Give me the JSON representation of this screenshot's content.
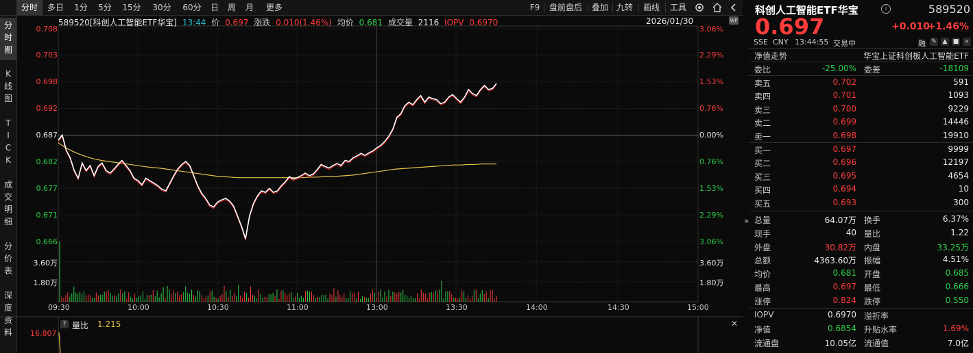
{
  "toolbar": {
    "tabs": [
      "分时",
      "多日",
      "1分",
      "5分",
      "15分",
      "30分",
      "60分",
      "日",
      "周",
      "月",
      "更多"
    ],
    "right_tools": [
      "F9",
      "盘前盘后",
      "叠加",
      "九转",
      "画线",
      "工具"
    ]
  },
  "sidebar": {
    "items": [
      "分时图",
      "K线图",
      "TICK",
      "成交明细",
      "分价表",
      "深度资料"
    ]
  },
  "info": {
    "code_name": "589520[科创人工智能ETF华宝]",
    "time": "13:44",
    "price_label": "价",
    "price": "0.697",
    "change_label": "涨跌",
    "change": "0.010(1.46%)",
    "avg_label": "均价",
    "avg": "0.681",
    "volume_label": "成交量",
    "volume": "2116",
    "iopv_label": "IOPV",
    "iopv": "0.6970",
    "date": "2026/01/30"
  },
  "lower_info": {
    "label": "量比",
    "value": "1.215",
    "axis_top": "16.807"
  },
  "chart_data": {
    "type": "line",
    "price_axis_left": [
      "0.708",
      "0.703",
      "0.698",
      "0.692",
      "0.687",
      "0.682",
      "0.677",
      "0.671",
      "0.666"
    ],
    "percent_axis_right": [
      "3.06%",
      "2.29%",
      "1.53%",
      "0.76%",
      "0.00%",
      "0.76%",
      "1.53%",
      "2.29%",
      "3.06%"
    ],
    "volume_axis": [
      "3.60万",
      "1.80万"
    ],
    "x_ticks": [
      "09:30",
      "10:00",
      "10:30",
      "11:00",
      "13:00",
      "13:30",
      "14:00",
      "14:30",
      "15:00"
    ],
    "ylim": [
      0.666,
      0.708
    ],
    "prev_close": 0.687,
    "series": [
      {
        "name": "价",
        "values": [
          0.686,
          0.687,
          0.684,
          0.6825,
          0.68,
          0.6785,
          0.6815,
          0.68,
          0.681,
          0.679,
          0.6808,
          0.6815,
          0.68,
          0.6795,
          0.6803,
          0.6812,
          0.682,
          0.681,
          0.68,
          0.6785,
          0.678,
          0.6772,
          0.6785,
          0.678,
          0.6775,
          0.677,
          0.6763,
          0.676,
          0.6775,
          0.679,
          0.6803,
          0.6812,
          0.6818,
          0.681,
          0.679,
          0.677,
          0.6755,
          0.6745,
          0.6732,
          0.6728,
          0.6738,
          0.6742,
          0.6745,
          0.674,
          0.673,
          0.671,
          0.669,
          0.6665,
          0.671,
          0.6735,
          0.675,
          0.676,
          0.6757,
          0.6765,
          0.6757,
          0.676,
          0.677,
          0.6778,
          0.6788,
          0.6783,
          0.6786,
          0.679,
          0.6795,
          0.679,
          0.6793,
          0.6802,
          0.6812,
          0.6808,
          0.6805,
          0.681,
          0.6814,
          0.681,
          0.682,
          0.6818,
          0.6825,
          0.6829,
          0.6834,
          0.683,
          0.6835,
          0.6839,
          0.6845,
          0.685,
          0.6858,
          0.6868,
          0.6882,
          0.6905,
          0.6912,
          0.6928,
          0.6935,
          0.693,
          0.694,
          0.6948,
          0.6935,
          0.6945,
          0.6942,
          0.694,
          0.6932,
          0.6935,
          0.6945,
          0.695,
          0.6942,
          0.6935,
          0.6945,
          0.696,
          0.6952,
          0.6948,
          0.696,
          0.6968,
          0.696,
          0.6962,
          0.6972
        ],
        "color": "#ffffff"
      },
      {
        "name": "均价",
        "values": [
          0.6855,
          0.6845,
          0.6838,
          0.6832,
          0.6827,
          0.6823,
          0.682,
          0.6818,
          0.6816,
          0.6814,
          0.6812,
          0.681,
          0.6808,
          0.6806,
          0.6805,
          0.6803,
          0.6801,
          0.6799,
          0.6797,
          0.6795,
          0.6793,
          0.6791,
          0.6789,
          0.6788,
          0.6787,
          0.6786,
          0.6786,
          0.6786,
          0.6786,
          0.6786,
          0.6786,
          0.6786,
          0.6786,
          0.6786,
          0.6786,
          0.6787,
          0.6787,
          0.6788,
          0.6788,
          0.6789,
          0.679,
          0.6791,
          0.6793,
          0.6795,
          0.6797,
          0.6799,
          0.6801,
          0.6803,
          0.6804,
          0.6805,
          0.6806,
          0.6807,
          0.6808,
          0.6809,
          0.681,
          0.6811,
          0.6811,
          0.6812,
          0.6812,
          0.6813,
          0.6813,
          0.6813
        ],
        "color": "#e6c34a"
      }
    ]
  },
  "panel": {
    "title": "科创人工智能ETF华宝",
    "code": "589520",
    "price": "0.697",
    "change": "+0.010",
    "change_pct": "+1.46%",
    "exchange": "SSE",
    "currency": "CNY",
    "time": "13:44:55",
    "status": "交易中",
    "margin_badge": "融",
    "nav_label": "净值走势",
    "index_name": "华宝上证科创板人工智能ETF",
    "weibi_label": "委比",
    "weibi": "-25.00%",
    "weicha_label": "委差",
    "weicha": "-18109",
    "asks": [
      {
        "label": "卖五",
        "price": "0.702",
        "vol": "591"
      },
      {
        "label": "卖四",
        "price": "0.701",
        "vol": "1093"
      },
      {
        "label": "卖三",
        "price": "0.700",
        "vol": "9229"
      },
      {
        "label": "卖二",
        "price": "0.699",
        "vol": "14446"
      },
      {
        "label": "卖一",
        "price": "0.698",
        "vol": "19910"
      }
    ],
    "bids": [
      {
        "label": "买一",
        "price": "0.697",
        "vol": "9999"
      },
      {
        "label": "买二",
        "price": "0.696",
        "vol": "12197"
      },
      {
        "label": "买三",
        "price": "0.695",
        "vol": "4654"
      },
      {
        "label": "买四",
        "price": "0.694",
        "vol": "10"
      },
      {
        "label": "买五",
        "price": "0.693",
        "vol": "300"
      }
    ],
    "stats": [
      {
        "k1": "总量",
        "v1": "64.07万",
        "c1": "#e8e8e8",
        "k2": "换手",
        "v2": "6.37%",
        "c2": "#e8e8e8"
      },
      {
        "k1": "现手",
        "v1": "40",
        "c1": "#e8e8e8",
        "k2": "量比",
        "v2": "1.22",
        "c2": "#e8e8e8"
      },
      {
        "k1": "外盘",
        "v1": "30.82万",
        "c1": "#ff3c3c",
        "k2": "内盘",
        "v2": "33.25万",
        "c2": "#2fd04a"
      },
      {
        "k1": "总额",
        "v1": "4363.60万",
        "c1": "#e8e8e8",
        "k2": "振幅",
        "v2": "4.51%",
        "c2": "#e8e8e8"
      },
      {
        "k1": "均价",
        "v1": "0.681",
        "c1": "#2fd04a",
        "k2": "开盘",
        "v2": "0.685",
        "c2": "#2fd04a"
      },
      {
        "k1": "最高",
        "v1": "0.697",
        "c1": "#ff3c3c",
        "k2": "最低",
        "v2": "0.666",
        "c2": "#2fd04a"
      },
      {
        "k1": "涨停",
        "v1": "0.824",
        "c1": "#ff3c3c",
        "k2": "跌停",
        "v2": "0.550",
        "c2": "#2fd04a"
      }
    ],
    "stats2": [
      {
        "k1": "IOPV",
        "v1": "0.6970",
        "c1": "#e8e8e8",
        "k2": "溢折率",
        "v2": "",
        "c2": "#e8e8e8"
      },
      {
        "k1": "净值",
        "v1": "0.6854",
        "c1": "#2fd04a",
        "k2": "升贴水率",
        "v2": "1.69%",
        "c2": "#ff3c3c"
      },
      {
        "k1": "流通盘",
        "v1": "10.05亿",
        "c1": "#e8e8e8",
        "k2": "流通值",
        "v2": "7.0亿",
        "c2": "#e8e8e8"
      }
    ],
    "collapse_glyph": "«",
    "close_glyph": "✕",
    "expand_glyph": "»"
  },
  "colors": {
    "up": "#ff3c3c",
    "down": "#2fd04a",
    "price_line": "#ffffff",
    "avg_line": "#e6c34a",
    "accent": "#29b6c8"
  }
}
